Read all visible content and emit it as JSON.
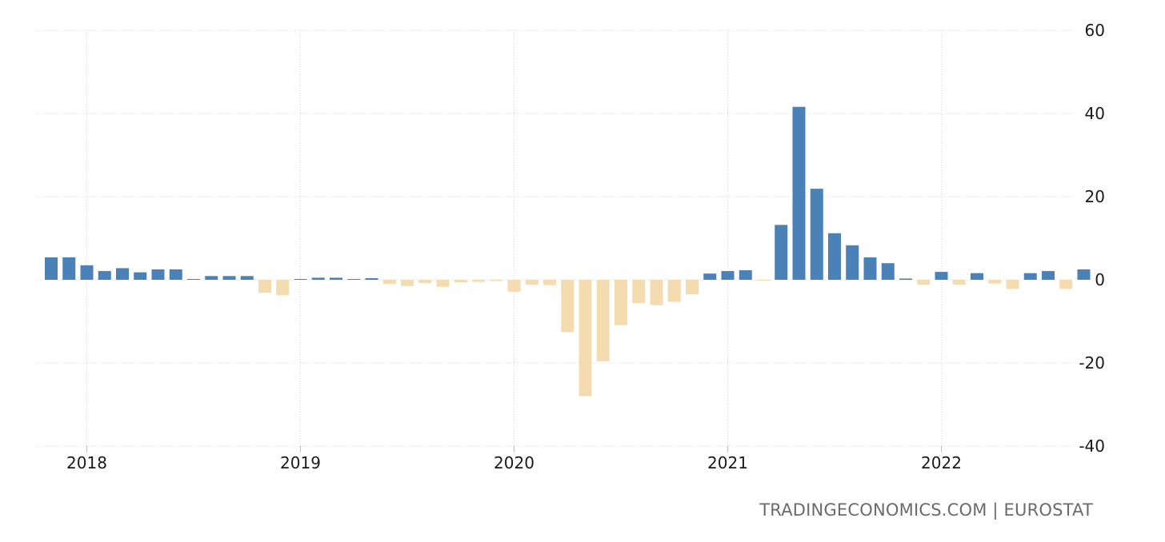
{
  "chart_data": {
    "type": "bar",
    "title": "",
    "xlabel": "",
    "ylabel": "",
    "ylim": [
      -40,
      60
    ],
    "yticks": [
      60,
      40,
      20,
      0,
      -20,
      -40
    ],
    "grid": true,
    "colors": {
      "positive": "#4a81b6",
      "negative": "#f5dcb0",
      "grid": "#d9d9d9",
      "text": "#1a1a1a",
      "source": "#6b6b6b"
    },
    "x_ticks": [
      {
        "label": "2018",
        "month_index": 2
      },
      {
        "label": "2019",
        "month_index": 14
      },
      {
        "label": "2020",
        "month_index": 26
      },
      {
        "label": "2021",
        "month_index": 38
      },
      {
        "label": "2022",
        "month_index": 50
      }
    ],
    "start_period": "2017-11",
    "values": [
      5.4,
      5.4,
      3.5,
      2.1,
      2.8,
      1.8,
      2.5,
      2.5,
      0.1,
      0.9,
      0.9,
      0.9,
      -3.1,
      -3.7,
      0.0,
      0.5,
      0.5,
      0.1,
      0.4,
      -1.0,
      -1.5,
      -0.8,
      -1.7,
      -0.6,
      -0.5,
      -0.3,
      -2.9,
      -1.2,
      -1.3,
      -12.6,
      -28.0,
      -19.6,
      -10.9,
      -5.6,
      -6.1,
      -5.3,
      -3.5,
      1.5,
      2.1,
      2.3,
      -0.1,
      13.2,
      41.6,
      21.9,
      11.2,
      8.3,
      5.4,
      4.0,
      0.3,
      -1.2,
      1.9,
      -1.2,
      1.6,
      -0.9,
      -2.2,
      1.6,
      2.1,
      -2.2,
      2.5
    ]
  },
  "source": "TRADINGECONOMICS.COM | EUROSTAT"
}
